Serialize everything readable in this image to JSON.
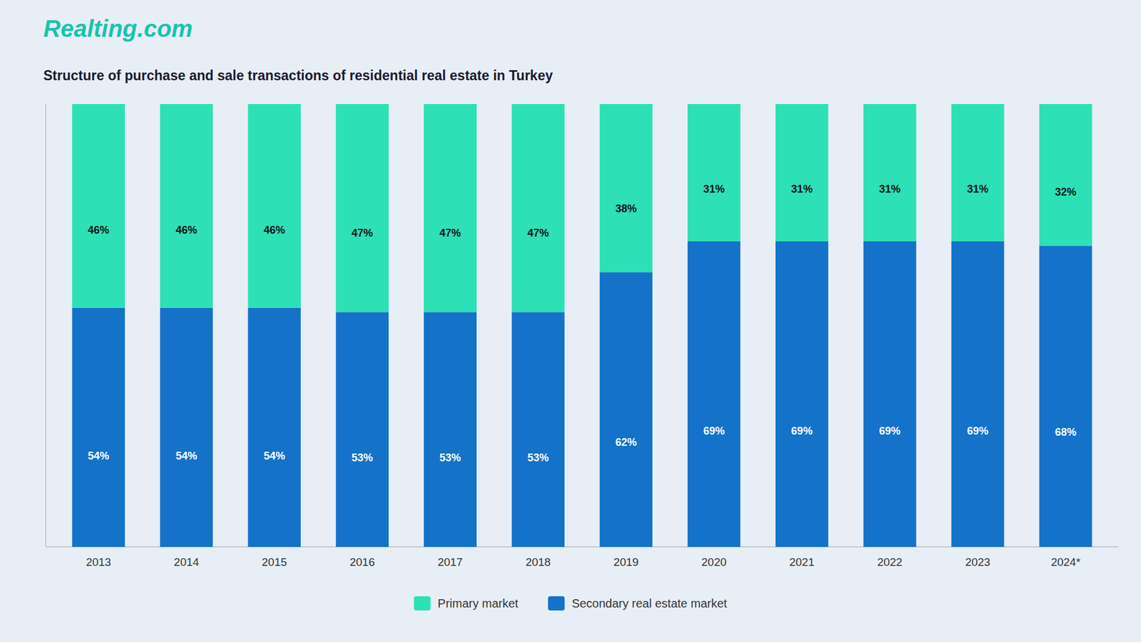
{
  "chart_data": {
    "type": "bar",
    "stacked": true,
    "title": "Structure of purchase and sale transactions of residential real estate in Turkey",
    "annotations": [
      {
        "text": "Realting.com",
        "color": "#17c4b0"
      }
    ],
    "categories": [
      "2013",
      "2014",
      "2015",
      "2016",
      "2017",
      "2018",
      "2019",
      "2020",
      "2021",
      "2022",
      "2023",
      "2024*"
    ],
    "series": [
      {
        "name": "Secondary real estate market",
        "color": "#1472c8",
        "values": [
          54,
          54,
          54,
          53,
          53,
          53,
          62,
          69,
          69,
          69,
          69,
          68
        ],
        "value_labels": [
          "54%",
          "54%",
          "54%",
          "53%",
          "53%",
          "53%",
          "62%",
          "69%",
          "69%",
          "69%",
          "69%",
          "68%"
        ]
      },
      {
        "name": "Primary market",
        "color": "#2de0b5",
        "values": [
          46,
          46,
          46,
          47,
          47,
          47,
          38,
          31,
          31,
          31,
          31,
          32
        ],
        "value_labels": [
          "46%",
          "46%",
          "46%",
          "47%",
          "47%",
          "47%",
          "38%",
          "31%",
          "31%",
          "31%",
          "31%",
          "32%"
        ]
      }
    ],
    "ylim": [
      0,
      100
    ],
    "yticks": [],
    "tick_labels": "x",
    "data_labels": true,
    "grid": false,
    "legend": "bottom"
  }
}
